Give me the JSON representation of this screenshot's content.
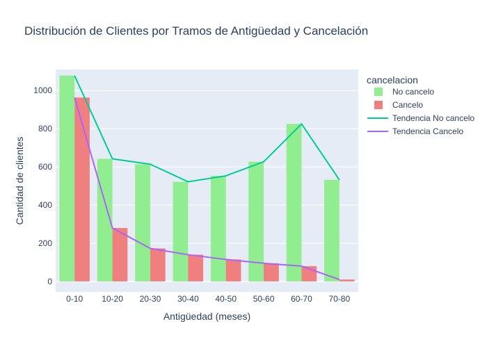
{
  "chart_data": {
    "type": "bar",
    "title": "Distribución de Clientes por Tramos de Antigüedad y Cancelación",
    "xlabel": "Antigüedad (meses)",
    "ylabel": "Cantidad de clientes",
    "ylim": [
      -55,
      1110
    ],
    "yticks": [
      0,
      200,
      400,
      600,
      800,
      1000
    ],
    "grid": true,
    "legend_title": "cancelacion",
    "legend_position": "right",
    "categories": [
      "0-10",
      "10-20",
      "20-30",
      "30-40",
      "40-50",
      "50-60",
      "60-70",
      "70-80"
    ],
    "series": [
      {
        "name": "No cancelo",
        "type": "bar",
        "color": "#90ee90",
        "values": [
          1078,
          642,
          614,
          522,
          553,
          627,
          825,
          532
        ]
      },
      {
        "name": "Cancelo",
        "type": "bar",
        "color": "#f08080",
        "values": [
          963,
          280,
          173,
          140,
          115,
          95,
          80,
          10
        ]
      },
      {
        "name": "Tendencia No cancelo",
        "type": "line",
        "color": "#00cc96",
        "values": [
          1078,
          642,
          614,
          522,
          553,
          627,
          825,
          532
        ]
      },
      {
        "name": "Tendencia Cancelo",
        "type": "line",
        "color": "#ab63fa",
        "values": [
          963,
          280,
          173,
          140,
          115,
          95,
          80,
          10
        ]
      }
    ]
  }
}
